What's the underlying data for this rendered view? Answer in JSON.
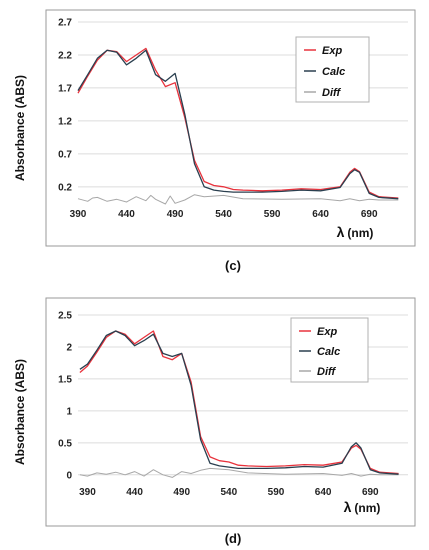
{
  "chart_data": [
    {
      "type": "line",
      "caption": "(c)",
      "ylabel": "Absorbance  (ABS)",
      "xlabel_symbol": "λ",
      "xlabel_unit": "(nm)",
      "xlim": [
        390,
        730
      ],
      "ylim": [
        0.0,
        2.7
      ],
      "xticks": [
        390,
        440,
        490,
        540,
        590,
        640,
        690
      ],
      "yticks": [
        0.2,
        0.7,
        1.2,
        1.7,
        2.2,
        2.7
      ],
      "grid": "horizontal",
      "legend_position": "top-right",
      "series": [
        {
          "name": "Exp",
          "color": "#e8323c",
          "x": [
            390,
            400,
            410,
            420,
            430,
            440,
            450,
            460,
            470,
            480,
            490,
            500,
            510,
            520,
            530,
            540,
            550,
            560,
            580,
            600,
            620,
            640,
            660,
            670,
            675,
            680,
            690,
            700,
            720
          ],
          "y": [
            1.62,
            1.88,
            2.12,
            2.27,
            2.25,
            2.1,
            2.2,
            2.3,
            1.97,
            1.72,
            1.78,
            1.25,
            0.6,
            0.28,
            0.22,
            0.2,
            0.16,
            0.15,
            0.14,
            0.15,
            0.17,
            0.16,
            0.2,
            0.42,
            0.48,
            0.43,
            0.12,
            0.05,
            0.03
          ]
        },
        {
          "name": "Calc",
          "color": "#2a3f4f",
          "x": [
            390,
            400,
            410,
            420,
            430,
            440,
            450,
            460,
            470,
            480,
            490,
            500,
            510,
            520,
            530,
            540,
            550,
            560,
            580,
            600,
            620,
            640,
            660,
            670,
            675,
            680,
            690,
            700,
            720
          ],
          "y": [
            1.66,
            1.9,
            2.15,
            2.27,
            2.24,
            2.05,
            2.15,
            2.27,
            1.9,
            1.8,
            1.92,
            1.3,
            0.55,
            0.2,
            0.15,
            0.13,
            0.12,
            0.12,
            0.12,
            0.13,
            0.15,
            0.14,
            0.19,
            0.4,
            0.46,
            0.42,
            0.1,
            0.04,
            0.02
          ]
        },
        {
          "name": "Diff",
          "color": "#a8a8a8",
          "x": [
            390,
            400,
            405,
            410,
            420,
            430,
            440,
            450,
            460,
            465,
            470,
            480,
            485,
            490,
            500,
            510,
            520,
            540,
            560,
            600,
            640,
            660,
            670,
            680,
            690,
            700,
            720
          ],
          "y": [
            0.02,
            -0.02,
            0.03,
            0.04,
            -0.02,
            0.01,
            -0.03,
            0.05,
            -0.01,
            0.07,
            0.01,
            -0.06,
            0.06,
            -0.05,
            0.0,
            0.08,
            0.05,
            0.07,
            0.02,
            0.01,
            0.02,
            -0.01,
            0.02,
            -0.01,
            0.01,
            0.0,
            0.0
          ]
        }
      ]
    },
    {
      "type": "line",
      "caption": "(d)",
      "ylabel": "Absorbance (ABS)",
      "xlabel_symbol": "λ",
      "xlabel_unit": "(nm)",
      "xlim": [
        380,
        730
      ],
      "ylim": [
        -0.05,
        2.5
      ],
      "xticks": [
        390,
        440,
        490,
        540,
        590,
        640,
        690
      ],
      "yticks": [
        0,
        0.5,
        1.0,
        1.5,
        2.0,
        2.5
      ],
      "grid": "horizontal",
      "legend_position": "top-right",
      "series": [
        {
          "name": "Exp",
          "color": "#e8323c",
          "x": [
            382,
            390,
            400,
            410,
            420,
            430,
            440,
            450,
            460,
            470,
            480,
            490,
            500,
            510,
            520,
            530,
            540,
            550,
            560,
            580,
            600,
            620,
            640,
            660,
            670,
            675,
            680,
            690,
            700,
            720
          ],
          "y": [
            1.6,
            1.7,
            1.92,
            2.15,
            2.25,
            2.2,
            2.05,
            2.15,
            2.25,
            1.85,
            1.8,
            1.9,
            1.45,
            0.6,
            0.28,
            0.22,
            0.2,
            0.15,
            0.14,
            0.13,
            0.14,
            0.16,
            0.15,
            0.2,
            0.42,
            0.46,
            0.4,
            0.1,
            0.04,
            0.02
          ]
        },
        {
          "name": "Calc",
          "color": "#2a3f4f",
          "x": [
            382,
            390,
            400,
            410,
            420,
            430,
            440,
            450,
            460,
            470,
            480,
            490,
            500,
            510,
            520,
            530,
            540,
            550,
            560,
            580,
            600,
            620,
            640,
            660,
            670,
            675,
            680,
            690,
            700,
            720
          ],
          "y": [
            1.65,
            1.73,
            1.95,
            2.18,
            2.25,
            2.18,
            2.02,
            2.1,
            2.2,
            1.9,
            1.85,
            1.9,
            1.4,
            0.55,
            0.18,
            0.14,
            0.12,
            0.1,
            0.1,
            0.1,
            0.11,
            0.13,
            0.12,
            0.18,
            0.44,
            0.5,
            0.42,
            0.08,
            0.03,
            0.01
          ]
        },
        {
          "name": "Diff",
          "color": "#a8a8a8",
          "x": [
            382,
            390,
            400,
            410,
            420,
            430,
            440,
            450,
            460,
            470,
            480,
            490,
            500,
            510,
            520,
            540,
            560,
            600,
            640,
            660,
            670,
            680,
            690,
            700,
            720
          ],
          "y": [
            0.0,
            -0.02,
            0.03,
            0.01,
            0.04,
            0.0,
            0.05,
            -0.02,
            0.08,
            0.0,
            -0.04,
            0.05,
            0.02,
            0.07,
            0.1,
            0.08,
            0.03,
            0.01,
            0.02,
            -0.01,
            0.02,
            -0.02,
            0.01,
            0.0,
            0.0
          ]
        }
      ]
    }
  ]
}
